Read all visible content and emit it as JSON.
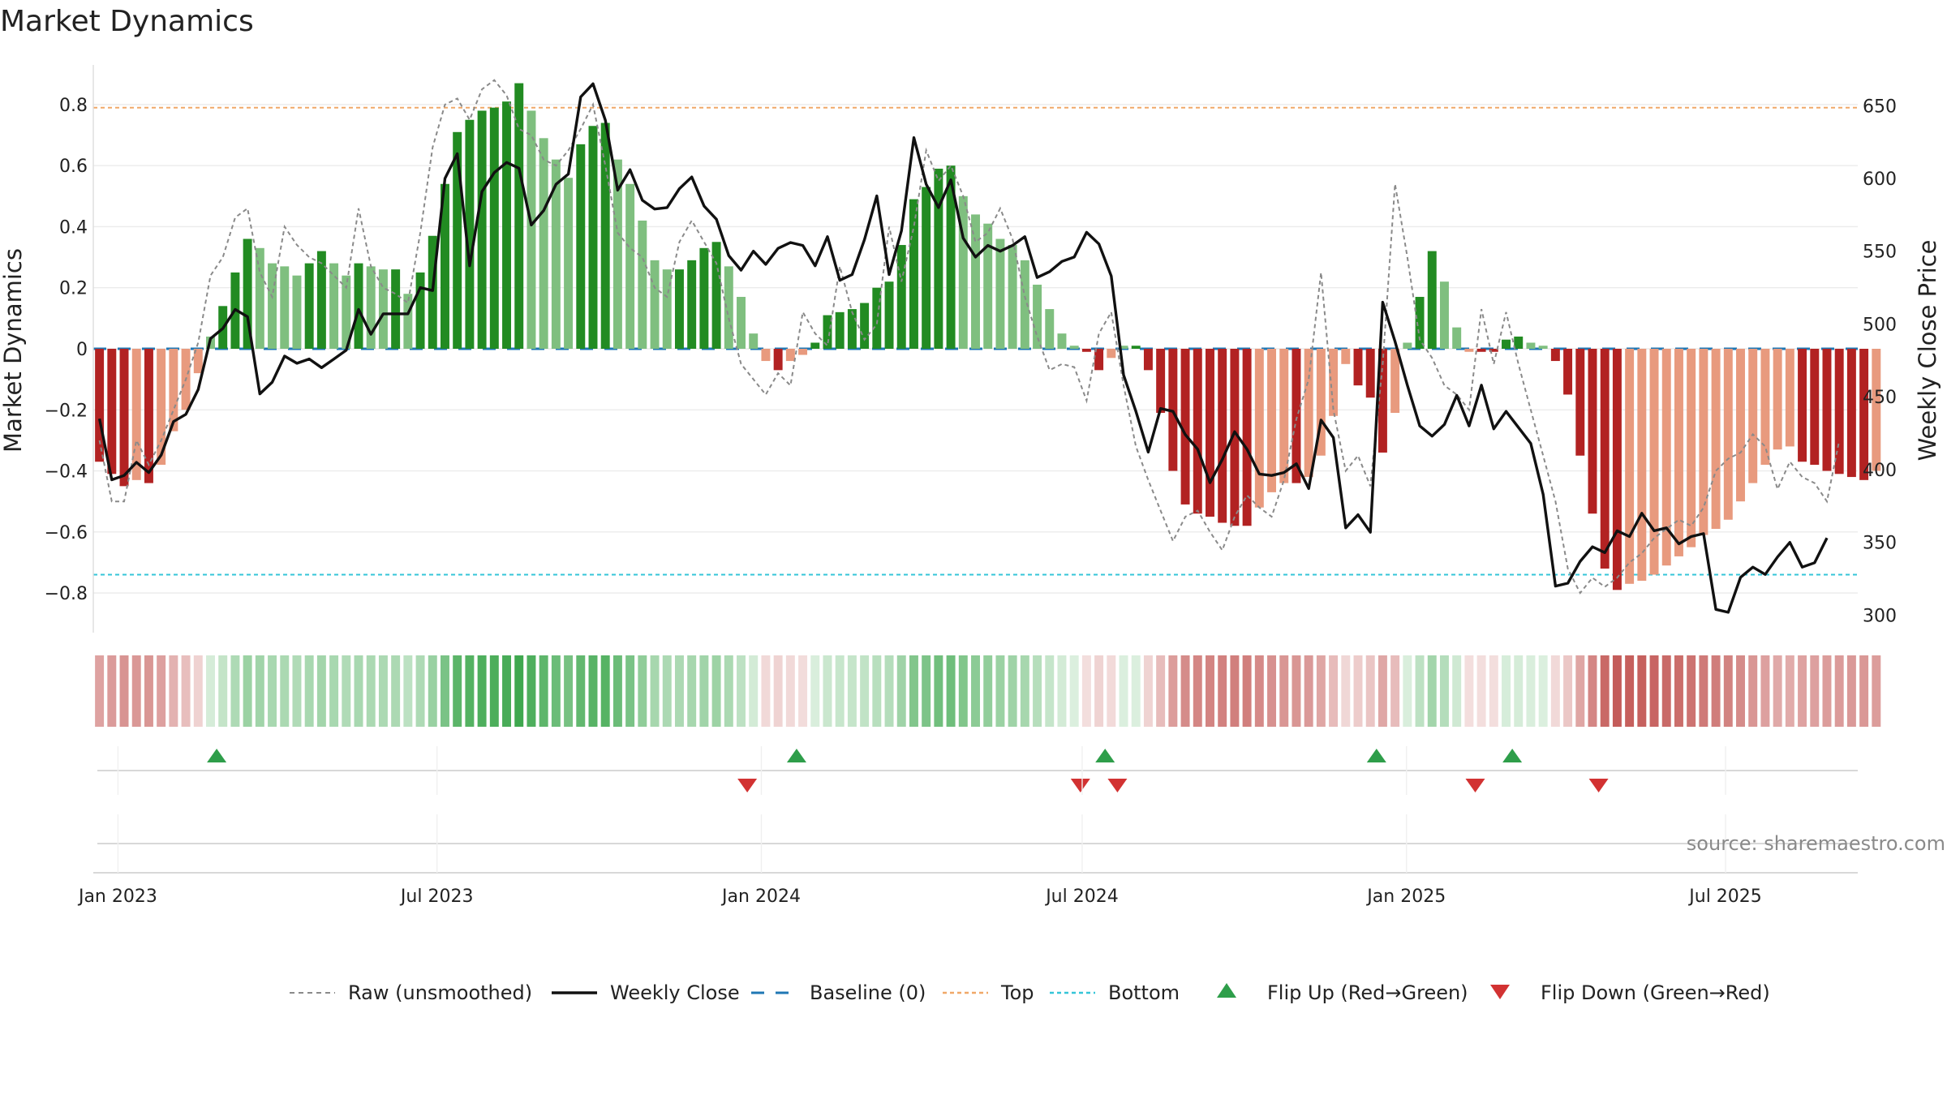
{
  "chart_data": {
    "type": "bar",
    "title": "Market Dynamics",
    "ylabel_left": "Market Dynamics",
    "ylabel_right": "Weekly Close Price",
    "ylim_left": [
      -0.93,
      0.93
    ],
    "ylim_right": [
      288,
      678
    ],
    "yticks_left": [
      "0.8",
      "0.6",
      "0.4",
      "0.2",
      "0",
      "−0.2",
      "−0.4",
      "−0.6",
      "−0.8"
    ],
    "yticks_left_values": [
      0.8,
      0.6,
      0.4,
      0.2,
      0,
      -0.2,
      -0.4,
      -0.6,
      -0.8
    ],
    "yticks_right": [
      "650",
      "600",
      "550",
      "500",
      "450",
      "400",
      "350",
      "300"
    ],
    "yticks_right_values": [
      650,
      600,
      550,
      500,
      450,
      400,
      350,
      300
    ],
    "x_start": "2022-12-18",
    "x_end": "2025-09-14",
    "xticks": [
      {
        "label": "Jan 2023",
        "date": "2023-01-01"
      },
      {
        "label": "Jul 2023",
        "date": "2023-07-01"
      },
      {
        "label": "Jan 2024",
        "date": "2024-01-01"
      },
      {
        "label": "Jul 2024",
        "date": "2024-07-01"
      },
      {
        "label": "Jan 2025",
        "date": "2025-01-01"
      },
      {
        "label": "Jul 2025",
        "date": "2025-07-01"
      }
    ],
    "top_level": 0.79,
    "bottom_level": -0.74,
    "grid": true,
    "legend_position": "bottom-center",
    "dynamics": [
      -0.37,
      -0.41,
      -0.45,
      -0.43,
      -0.44,
      -0.38,
      -0.27,
      -0.2,
      -0.08,
      0.04,
      0.14,
      0.25,
      0.36,
      0.33,
      0.28,
      0.27,
      0.24,
      0.28,
      0.32,
      0.28,
      0.24,
      0.28,
      0.27,
      0.26,
      0.26,
      0.18,
      0.25,
      0.37,
      0.54,
      0.71,
      0.75,
      0.78,
      0.79,
      0.81,
      0.87,
      0.78,
      0.69,
      0.62,
      0.56,
      0.67,
      0.73,
      0.74,
      0.62,
      0.54,
      0.42,
      0.29,
      0.26,
      0.26,
      0.29,
      0.33,
      0.35,
      0.27,
      0.17,
      0.05,
      -0.04,
      -0.07,
      -0.04,
      -0.02,
      0.02,
      0.11,
      0.12,
      0.13,
      0.15,
      0.2,
      0.22,
      0.34,
      0.49,
      0.53,
      0.59,
      0.6,
      0.5,
      0.44,
      0.41,
      0.36,
      0.34,
      0.29,
      0.21,
      0.13,
      0.05,
      0.01,
      -0.01,
      -0.07,
      -0.03,
      0.01,
      0.01,
      -0.07,
      -0.21,
      -0.4,
      -0.51,
      -0.54,
      -0.55,
      -0.57,
      -0.58,
      -0.58,
      -0.52,
      -0.47,
      -0.44,
      -0.44,
      -0.42,
      -0.35,
      -0.22,
      -0.05,
      -0.12,
      -0.16,
      -0.34,
      -0.21,
      0.02,
      0.17,
      0.32,
      0.22,
      0.07,
      -0.01,
      -0.01,
      -0.01,
      0.03,
      0.04,
      0.02,
      0.01,
      -0.04,
      -0.15,
      -0.35,
      -0.54,
      -0.72,
      -0.79,
      -0.77,
      -0.76,
      -0.74,
      -0.71,
      -0.68,
      -0.65,
      -0.61,
      -0.59,
      -0.56,
      -0.5,
      -0.44,
      -0.38,
      -0.33,
      -0.32,
      -0.37,
      -0.38,
      -0.4,
      -0.41,
      -0.42,
      -0.43,
      -0.4
    ],
    "raw": [
      -0.3,
      -0.5,
      -0.5,
      -0.3,
      -0.38,
      -0.3,
      -0.2,
      -0.1,
      0.02,
      0.24,
      0.3,
      0.43,
      0.46,
      0.25,
      0.17,
      0.4,
      0.34,
      0.3,
      0.28,
      0.24,
      0.2,
      0.46,
      0.27,
      0.2,
      0.18,
      0.15,
      0.38,
      0.66,
      0.8,
      0.82,
      0.75,
      0.85,
      0.88,
      0.83,
      0.72,
      0.7,
      0.62,
      0.6,
      0.65,
      0.72,
      0.8,
      0.6,
      0.38,
      0.33,
      0.3,
      0.2,
      0.17,
      0.35,
      0.42,
      0.35,
      0.28,
      0.1,
      -0.05,
      -0.1,
      -0.15,
      -0.08,
      -0.12,
      0.12,
      0.05,
      0.01,
      0.27,
      0.12,
      0.03,
      0.08,
      0.4,
      0.22,
      0.4,
      0.65,
      0.55,
      0.6,
      0.5,
      0.35,
      0.38,
      0.46,
      0.36,
      0.17,
      0.04,
      -0.07,
      -0.05,
      -0.06,
      -0.17,
      0.05,
      0.12,
      -0.12,
      -0.32,
      -0.43,
      -0.53,
      -0.63,
      -0.55,
      -0.53,
      -0.6,
      -0.66,
      -0.55,
      -0.48,
      -0.52,
      -0.55,
      -0.43,
      -0.23,
      -0.1,
      0.25,
      -0.2,
      -0.4,
      -0.35,
      -0.45,
      -0.05,
      0.54,
      0.3,
      0.03,
      -0.03,
      -0.12,
      -0.15,
      -0.2,
      0.13,
      -0.05,
      0.12,
      -0.05,
      -0.2,
      -0.35,
      -0.5,
      -0.72,
      -0.8,
      -0.75,
      -0.78,
      -0.75,
      -0.7,
      -0.67,
      -0.62,
      -0.59,
      -0.56,
      -0.58,
      -0.52,
      -0.4,
      -0.36,
      -0.34,
      -0.28,
      -0.32,
      -0.46,
      -0.37,
      -0.42,
      -0.44,
      -0.5,
      -0.3
    ],
    "weekly_close": [
      435,
      393,
      396,
      405,
      398,
      410,
      433,
      438,
      455,
      490,
      497,
      510,
      505,
      452,
      460,
      478,
      473,
      476,
      470,
      476,
      482,
      510,
      493,
      507,
      507,
      507,
      525,
      523,
      600,
      617,
      540,
      591,
      604,
      611,
      607,
      568,
      578,
      596,
      603,
      656,
      665,
      640,
      592,
      606,
      585,
      579,
      580,
      593,
      601,
      581,
      572,
      547,
      537,
      550,
      541,
      552,
      556,
      554,
      540,
      560,
      530,
      534,
      558,
      588,
      534,
      564,
      628,
      596,
      580,
      599,
      559,
      546,
      554,
      550,
      554,
      560,
      532,
      536,
      543,
      546,
      563,
      555,
      533,
      465,
      440,
      412,
      442,
      440,
      424,
      414,
      391,
      407,
      426,
      414,
      397,
      396,
      398,
      404,
      387,
      434,
      422,
      360,
      369,
      357,
      515,
      488,
      458,
      430,
      423,
      431,
      451,
      430,
      458,
      428,
      440,
      429,
      418,
      383,
      320,
      322,
      337,
      347,
      343,
      358,
      354,
      370,
      358,
      360,
      349,
      354,
      356,
      304,
      302,
      326,
      333,
      328,
      340,
      350,
      333,
      336,
      353
    ],
    "flip_up": [
      "2023-02-26",
      "2024-01-21",
      "2024-07-14",
      "2024-12-15",
      "2025-03-02"
    ],
    "flip_down": [
      "2023-12-24",
      "2024-06-30",
      "2024-07-21",
      "2025-02-09",
      "2025-04-20"
    ],
    "series": [
      {
        "name": "Raw (unsmoothed)",
        "color": "#8a8a8a"
      },
      {
        "name": "Weekly Close",
        "color": "#111111"
      },
      {
        "name": "Baseline (0)",
        "color": "#1f77b4"
      },
      {
        "name": "Top",
        "color": "#f0a868"
      },
      {
        "name": "Bottom",
        "color": "#35c5d8"
      },
      {
        "name": "Flip Up (Red→Green)",
        "color": "#2e9e4a"
      },
      {
        "name": "Flip Down (Green→Red)",
        "color": "#d23232"
      }
    ],
    "colors": {
      "strong_pos": "#228b22",
      "weak_pos": "#7fbf7f",
      "strong_neg": "#b22222",
      "weak_neg": "#e89a7e",
      "heat_pos": "#3fa84f",
      "heat_neg": "#c0504d"
    }
  },
  "source": "source: sharemaestro.com"
}
